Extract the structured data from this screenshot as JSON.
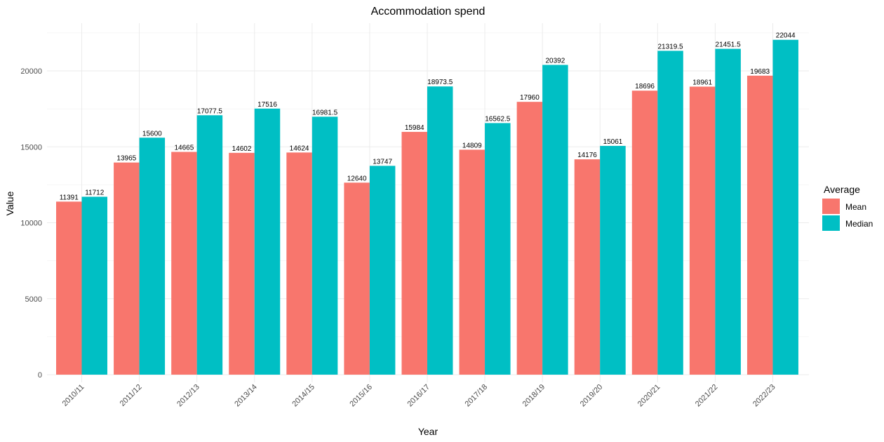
{
  "chart_data": {
    "type": "bar",
    "title": "Accommodation spend",
    "xlabel": "Year",
    "ylabel": "Value",
    "categories": [
      "2010/11",
      "2011/12",
      "2012/13",
      "2013/14",
      "2014/15",
      "2015/16",
      "2016/17",
      "2017/18",
      "2018/19",
      "2019/20",
      "2020/21",
      "2021/22",
      "2022/23"
    ],
    "series": [
      {
        "name": "Mean",
        "color": "#F8766D",
        "values": [
          11391,
          13965,
          14665,
          14602,
          14624,
          12640,
          15984,
          14809,
          17960,
          14176,
          18696,
          18961,
          19683
        ]
      },
      {
        "name": "Median",
        "color": "#00BFC4",
        "values": [
          11712,
          15600,
          17077.5,
          17516,
          16981.5,
          13747,
          18973.5,
          16562.5,
          20392,
          15061,
          21319.5,
          21451.5,
          22044
        ]
      }
    ],
    "ylim": [
      0,
      22900
    ],
    "yticks": [
      0,
      5000,
      10000,
      15000,
      20000
    ],
    "grid": true,
    "legend": {
      "title": "Average",
      "position": "right"
    }
  }
}
